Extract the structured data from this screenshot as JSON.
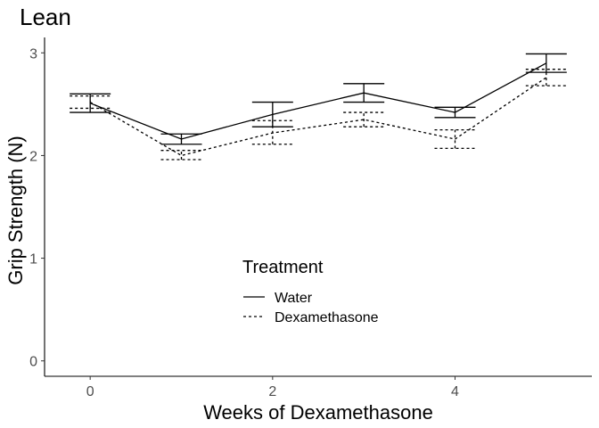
{
  "chart_data": {
    "type": "line",
    "title": "Lean",
    "xlabel": "Weeks of Dexamethasone",
    "ylabel": "Grip Strength (N)",
    "xlim": [
      -0.5,
      5.5
    ],
    "ylim": [
      -0.15,
      3.15
    ],
    "x_ticks": [
      0,
      2,
      4
    ],
    "y_ticks": [
      0,
      1,
      2,
      3
    ],
    "grid": false,
    "legend": {
      "title": "Treatment",
      "placement": "inside-bottom-center"
    },
    "x": [
      0,
      1,
      2,
      3,
      4,
      5
    ],
    "series": [
      {
        "name": "Water",
        "linestyle": "solid",
        "values": [
          2.51,
          2.16,
          2.4,
          2.61,
          2.42,
          2.9
        ],
        "error_low": [
          2.42,
          2.11,
          2.28,
          2.52,
          2.37,
          2.81
        ],
        "error_high": [
          2.6,
          2.21,
          2.52,
          2.7,
          2.47,
          2.99
        ]
      },
      {
        "name": "Dexamethasone",
        "linestyle": "dotted",
        "values": [
          2.52,
          2.0,
          2.22,
          2.35,
          2.16,
          2.76
        ],
        "error_low": [
          2.46,
          1.96,
          2.11,
          2.28,
          2.07,
          2.68
        ],
        "error_high": [
          2.58,
          2.05,
          2.34,
          2.42,
          2.25,
          2.84
        ]
      }
    ]
  }
}
